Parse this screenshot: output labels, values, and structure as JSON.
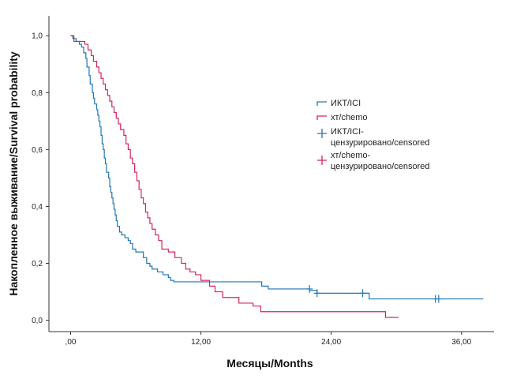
{
  "chart_data": {
    "type": "line",
    "subtype": "kaplan-meier",
    "xlabel": "Месяцы/Months",
    "ylabel": "Накопленное выживание/Survival probability",
    "xlim": [
      -2,
      39
    ],
    "ylim": [
      -0.04,
      1.07
    ],
    "x_ticks": [
      0,
      12,
      24,
      36
    ],
    "x_tick_labels": [
      ",00",
      "12,00",
      "24,00",
      "36,00"
    ],
    "y_ticks": [
      0.0,
      0.2,
      0.4,
      0.6,
      0.8,
      1.0
    ],
    "y_tick_labels": [
      "0,0",
      "0,2",
      "0,4",
      "0,6",
      "0,8",
      "1,0"
    ],
    "legend_position": "right",
    "series": [
      {
        "name": "ИКТ/ICI",
        "color": "#1f77b4",
        "steps": [
          [
            0,
            1.0
          ],
          [
            0.2,
            0.99
          ],
          [
            0.5,
            0.98
          ],
          [
            0.8,
            0.97
          ],
          [
            1.0,
            0.96
          ],
          [
            1.2,
            0.94
          ],
          [
            1.4,
            0.92
          ],
          [
            1.5,
            0.89
          ],
          [
            1.7,
            0.86
          ],
          [
            1.8,
            0.83
          ],
          [
            2.0,
            0.8
          ],
          [
            2.1,
            0.78
          ],
          [
            2.2,
            0.76
          ],
          [
            2.4,
            0.74
          ],
          [
            2.5,
            0.72
          ],
          [
            2.6,
            0.7
          ],
          [
            2.7,
            0.68
          ],
          [
            2.8,
            0.65
          ],
          [
            2.9,
            0.62
          ],
          [
            3.0,
            0.6
          ],
          [
            3.1,
            0.57
          ],
          [
            3.2,
            0.55
          ],
          [
            3.3,
            0.52
          ],
          [
            3.5,
            0.5
          ],
          [
            3.6,
            0.47
          ],
          [
            3.7,
            0.45
          ],
          [
            3.8,
            0.43
          ],
          [
            3.9,
            0.41
          ],
          [
            4.0,
            0.39
          ],
          [
            4.1,
            0.37
          ],
          [
            4.2,
            0.35
          ],
          [
            4.3,
            0.33
          ],
          [
            4.5,
            0.31
          ],
          [
            4.7,
            0.3
          ],
          [
            5.0,
            0.29
          ],
          [
            5.3,
            0.28
          ],
          [
            5.5,
            0.27
          ],
          [
            5.7,
            0.25
          ],
          [
            6.0,
            0.24
          ],
          [
            6.7,
            0.22
          ],
          [
            7.0,
            0.2
          ],
          [
            7.3,
            0.19
          ],
          [
            7.5,
            0.18
          ],
          [
            8.0,
            0.17
          ],
          [
            8.5,
            0.16
          ],
          [
            9.0,
            0.15
          ],
          [
            9.2,
            0.14
          ],
          [
            9.5,
            0.135
          ],
          [
            17.6,
            0.12
          ],
          [
            18.2,
            0.11
          ],
          [
            22.0,
            0.105
          ],
          [
            22.7,
            0.095
          ],
          [
            27.5,
            0.075
          ],
          [
            38.0,
            0.075
          ]
        ],
        "censored": [
          [
            22.0,
            0.11
          ],
          [
            22.7,
            0.095
          ],
          [
            26.9,
            0.095
          ],
          [
            33.6,
            0.075
          ],
          [
            33.9,
            0.075
          ]
        ]
      },
      {
        "name": "хт/chemo",
        "color": "#d6245a",
        "steps": [
          [
            0,
            1.0
          ],
          [
            0.3,
            0.98
          ],
          [
            1.0,
            0.98
          ],
          [
            1.3,
            0.97
          ],
          [
            1.6,
            0.95
          ],
          [
            1.9,
            0.93
          ],
          [
            2.1,
            0.91
          ],
          [
            2.4,
            0.89
          ],
          [
            2.6,
            0.87
          ],
          [
            2.8,
            0.85
          ],
          [
            3.0,
            0.83
          ],
          [
            3.2,
            0.81
          ],
          [
            3.4,
            0.79
          ],
          [
            3.6,
            0.77
          ],
          [
            3.8,
            0.75
          ],
          [
            4.0,
            0.73
          ],
          [
            4.2,
            0.71
          ],
          [
            4.4,
            0.69
          ],
          [
            4.6,
            0.67
          ],
          [
            4.9,
            0.65
          ],
          [
            5.1,
            0.62
          ],
          [
            5.3,
            0.6
          ],
          [
            5.5,
            0.57
          ],
          [
            5.7,
            0.55
          ],
          [
            5.9,
            0.52
          ],
          [
            6.1,
            0.49
          ],
          [
            6.3,
            0.46
          ],
          [
            6.5,
            0.43
          ],
          [
            6.7,
            0.41
          ],
          [
            6.9,
            0.38
          ],
          [
            7.1,
            0.36
          ],
          [
            7.3,
            0.34
          ],
          [
            7.5,
            0.32
          ],
          [
            7.8,
            0.3
          ],
          [
            8.1,
            0.28
          ],
          [
            8.4,
            0.25
          ],
          [
            9.0,
            0.24
          ],
          [
            9.6,
            0.22
          ],
          [
            10.2,
            0.2
          ],
          [
            10.6,
            0.18
          ],
          [
            11.0,
            0.17
          ],
          [
            11.5,
            0.16
          ],
          [
            12.0,
            0.14
          ],
          [
            12.8,
            0.12
          ],
          [
            13.3,
            0.1
          ],
          [
            14.0,
            0.08
          ],
          [
            15.5,
            0.06
          ],
          [
            16.8,
            0.05
          ],
          [
            17.5,
            0.03
          ],
          [
            29.0,
            0.01
          ],
          [
            30.2,
            0.01
          ]
        ],
        "censored": []
      }
    ],
    "legend": [
      {
        "label": "ИКТ/ICI",
        "color": "#1f77b4",
        "marker": "step"
      },
      {
        "label": "хт/chemo",
        "color": "#d6245a",
        "marker": "step"
      },
      {
        "label_lines": [
          "ИКТ/ICI-",
          "цензурировано/censored"
        ],
        "color": "#1f77b4",
        "marker": "plus"
      },
      {
        "label_lines": [
          "хт/chemo-",
          "цензурировано/censored"
        ],
        "color": "#d6245a",
        "marker": "plus"
      }
    ]
  }
}
